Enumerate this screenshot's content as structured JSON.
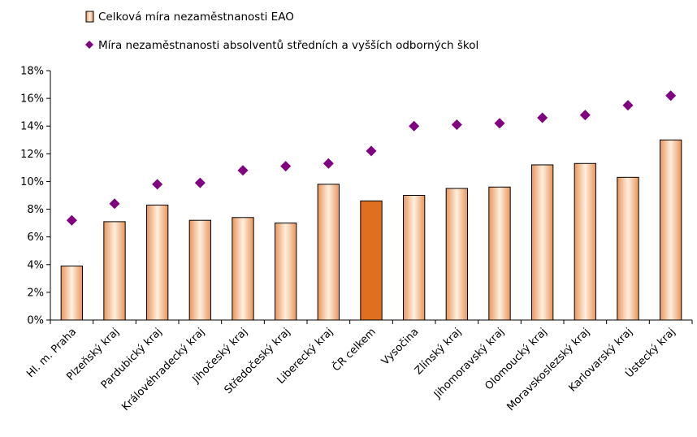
{
  "chart_data": {
    "type": "bar",
    "categories": [
      "Hl. m. Praha",
      "Plzeňský kraj",
      "Pardubický kraj",
      "Královéhradecký kraj",
      "Jihočeský kraj",
      "Středočeský kraj",
      "Liberecký kraj",
      "ČR celkem",
      "Vysočina",
      "Zlínský kraj",
      "Jihomoravský kraj",
      "Olomoucký kraj",
      "Moravskoslezský kraj",
      "Karlovarský kraj",
      "Ústecký kraj"
    ],
    "series": [
      {
        "name": "Celková míra nezaměstnanosti EAO",
        "type": "bar",
        "values": [
          3.9,
          7.1,
          8.3,
          7.2,
          7.4,
          7.0,
          9.8,
          8.6,
          9.0,
          9.5,
          9.6,
          11.2,
          11.3,
          10.3,
          13.0
        ],
        "color": "#f5b98a",
        "highlight_color": "#e07020",
        "highlight_category": "ČR celkem"
      },
      {
        "name": "Míra nezaměstnanosti absolventů středních a vyšších odborných škol",
        "type": "scatter",
        "values": [
          7.2,
          8.4,
          9.8,
          9.9,
          10.8,
          11.1,
          11.3,
          12.2,
          14.0,
          14.1,
          14.2,
          14.6,
          14.8,
          15.5,
          16.2
        ],
        "color": "#800080"
      }
    ],
    "y_ticks": [
      "0%",
      "2%",
      "4%",
      "6%",
      "8%",
      "10%",
      "12%",
      "14%",
      "16%",
      "18%"
    ],
    "ylim": [
      0,
      18
    ],
    "title": "",
    "xlabel": "",
    "ylabel": "",
    "grid": false,
    "legend": "top-left"
  }
}
